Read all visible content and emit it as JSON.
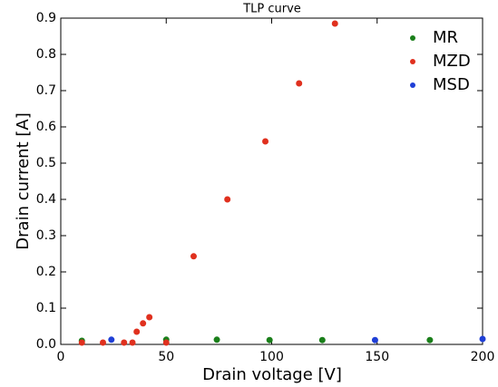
{
  "chart_data": {
    "type": "scatter",
    "title": "TLP curve",
    "x_label": "Drain voltage [V]",
    "y_label": "Drain current [A]",
    "xlim": [
      0,
      200
    ],
    "ylim": [
      0,
      0.9
    ],
    "xticks": [
      0,
      50,
      100,
      150,
      200
    ],
    "yticks": [
      {
        "value": 0,
        "label": "0.0"
      },
      0.1,
      0.2,
      0.3,
      0.4,
      0.5,
      0.6,
      0.7,
      0.8,
      0.9
    ],
    "legend": "upper right",
    "series": [
      {
        "name": "MR",
        "color": "#1a7f1a",
        "x": [
          10,
          50,
          74,
          99,
          124,
          175
        ],
        "values": [
          0.01,
          0.013,
          0.013,
          0.012,
          0.012,
          0.012
        ]
      },
      {
        "name": "MZD",
        "color": "#e0301e",
        "x": [
          10,
          20,
          30,
          34,
          36,
          39,
          42,
          50,
          63,
          79,
          97,
          113,
          130
        ],
        "values": [
          0.005,
          0.005,
          0.005,
          0.005,
          0.035,
          0.058,
          0.075,
          0.005,
          0.243,
          0.4,
          0.56,
          0.72,
          0.885
        ]
      },
      {
        "name": "MSD",
        "color": "#1f3fd6",
        "x": [
          24,
          149,
          200
        ],
        "values": [
          0.013,
          0.012,
          0.015
        ]
      }
    ]
  }
}
